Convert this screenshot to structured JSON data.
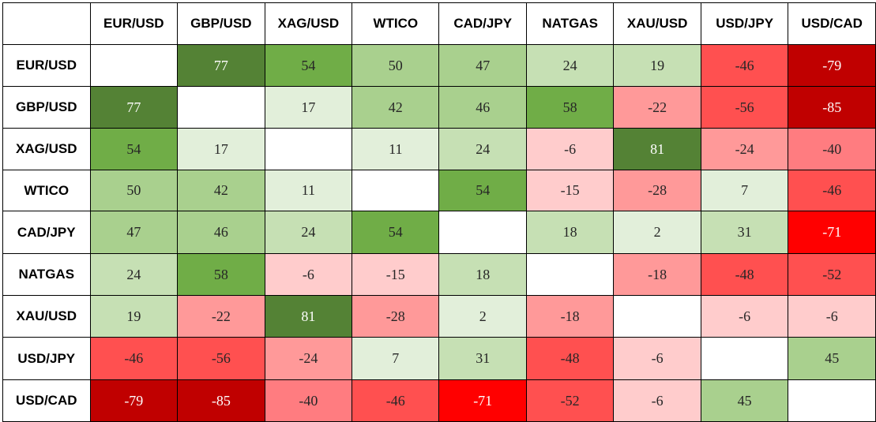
{
  "chart_data": {
    "type": "heatmap",
    "labels": [
      "EUR/USD",
      "GBP/USD",
      "XAG/USD",
      "WTICO",
      "CAD/JPY",
      "NATGAS",
      "XAU/USD",
      "USD/JPY",
      "USD/CAD"
    ],
    "values": [
      [
        null,
        77,
        54,
        50,
        47,
        24,
        19,
        -46,
        -79
      ],
      [
        77,
        null,
        17,
        42,
        46,
        58,
        -22,
        -56,
        -85
      ],
      [
        54,
        17,
        null,
        11,
        24,
        -6,
        81,
        -24,
        -40
      ],
      [
        50,
        42,
        11,
        null,
        54,
        -15,
        -28,
        7,
        -46
      ],
      [
        47,
        46,
        24,
        54,
        null,
        18,
        2,
        31,
        -71
      ],
      [
        24,
        58,
        -6,
        -15,
        18,
        null,
        -18,
        -48,
        -52
      ],
      [
        19,
        -22,
        81,
        -28,
        2,
        -18,
        null,
        -6,
        -6
      ],
      [
        -46,
        -56,
        -24,
        7,
        31,
        -48,
        -6,
        null,
        45
      ],
      [
        -79,
        -85,
        -40,
        -46,
        -71,
        -52,
        -6,
        45,
        null
      ]
    ],
    "colors": {
      "green_strong": "#548235",
      "green_medium": "#70ad47",
      "green_light": "#a9d08e",
      "green_pale": "#c6e0b4",
      "green_faint": "#e2efda",
      "red_faint": "#ffcccc",
      "red_light": "#ff9999",
      "red_medium": "#ff7c80",
      "red_strong": "#ff5050",
      "red_bright": "#ff0000",
      "red_dark": "#c00000",
      "empty": "#ffffff"
    },
    "color_matrix": [
      [
        "empty",
        "green_strong",
        "green_medium",
        "green_light",
        "green_light",
        "green_pale",
        "green_pale",
        "red_strong",
        "red_dark"
      ],
      [
        "green_strong",
        "empty",
        "green_faint",
        "green_light",
        "green_light",
        "green_medium",
        "red_light",
        "red_strong",
        "red_dark"
      ],
      [
        "green_medium",
        "green_faint",
        "empty",
        "green_faint",
        "green_pale",
        "red_faint",
        "green_strong",
        "red_light",
        "red_medium"
      ],
      [
        "green_light",
        "green_light",
        "green_faint",
        "empty",
        "green_medium",
        "red_faint",
        "red_light",
        "green_faint",
        "red_strong"
      ],
      [
        "green_light",
        "green_light",
        "green_pale",
        "green_medium",
        "empty",
        "green_pale",
        "green_faint",
        "green_pale",
        "red_bright"
      ],
      [
        "green_pale",
        "green_medium",
        "red_faint",
        "red_faint",
        "green_pale",
        "empty",
        "red_light",
        "red_strong",
        "red_strong"
      ],
      [
        "green_pale",
        "red_light",
        "green_strong",
        "red_light",
        "green_faint",
        "red_light",
        "empty",
        "red_faint",
        "red_faint"
      ],
      [
        "red_strong",
        "red_strong",
        "red_light",
        "green_faint",
        "green_pale",
        "red_strong",
        "red_faint",
        "empty",
        "green_light"
      ],
      [
        "red_dark",
        "red_dark",
        "red_medium",
        "red_strong",
        "red_bright",
        "red_strong",
        "red_faint",
        "green_light",
        "empty"
      ]
    ],
    "white_text_colors": [
      "green_strong",
      "red_bright",
      "red_dark"
    ],
    "dark_text_color": "#262626",
    "light_text_color": "#ffffff",
    "grid": true
  }
}
